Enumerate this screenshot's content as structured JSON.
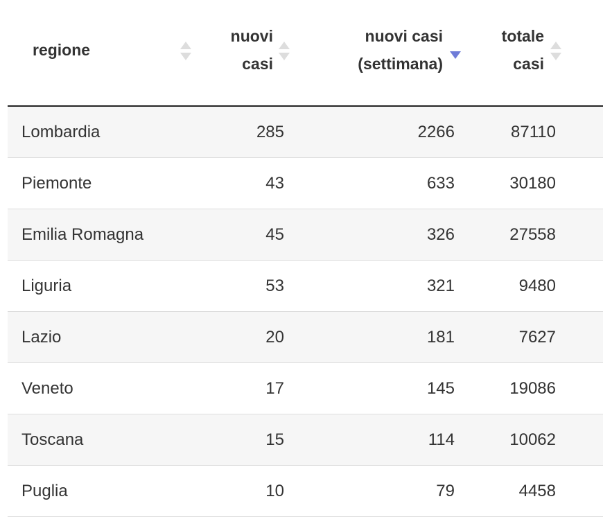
{
  "table": {
    "columns": [
      {
        "label": "regione",
        "sort": "none"
      },
      {
        "label": "nuovi\ncasi",
        "sort": "none"
      },
      {
        "label": "nuovi casi\n(settimana)",
        "sort": "desc"
      },
      {
        "label": "totale\ncasi",
        "sort": "none"
      }
    ],
    "rows": [
      {
        "regione": "Lombardia",
        "nuovi": "285",
        "settimana": "2266",
        "totale": "87110"
      },
      {
        "regione": "Piemonte",
        "nuovi": "43",
        "settimana": "633",
        "totale": "30180"
      },
      {
        "regione": "Emilia Romagna",
        "nuovi": "45",
        "settimana": "326",
        "totale": "27558"
      },
      {
        "regione": "Liguria",
        "nuovi": "53",
        "settimana": "321",
        "totale": "9480"
      },
      {
        "regione": "Lazio",
        "nuovi": "20",
        "settimana": "181",
        "totale": "7627"
      },
      {
        "regione": "Veneto",
        "nuovi": "17",
        "settimana": "145",
        "totale": "19086"
      },
      {
        "regione": "Toscana",
        "nuovi": "15",
        "settimana": "114",
        "totale": "10062"
      },
      {
        "regione": "Puglia",
        "nuovi": "10",
        "settimana": "79",
        "totale": "4458"
      }
    ]
  },
  "colors": {
    "sort_active": "#6f7cd8",
    "sort_inactive": "#dddddd",
    "row_alt": "#f6f6f6"
  }
}
